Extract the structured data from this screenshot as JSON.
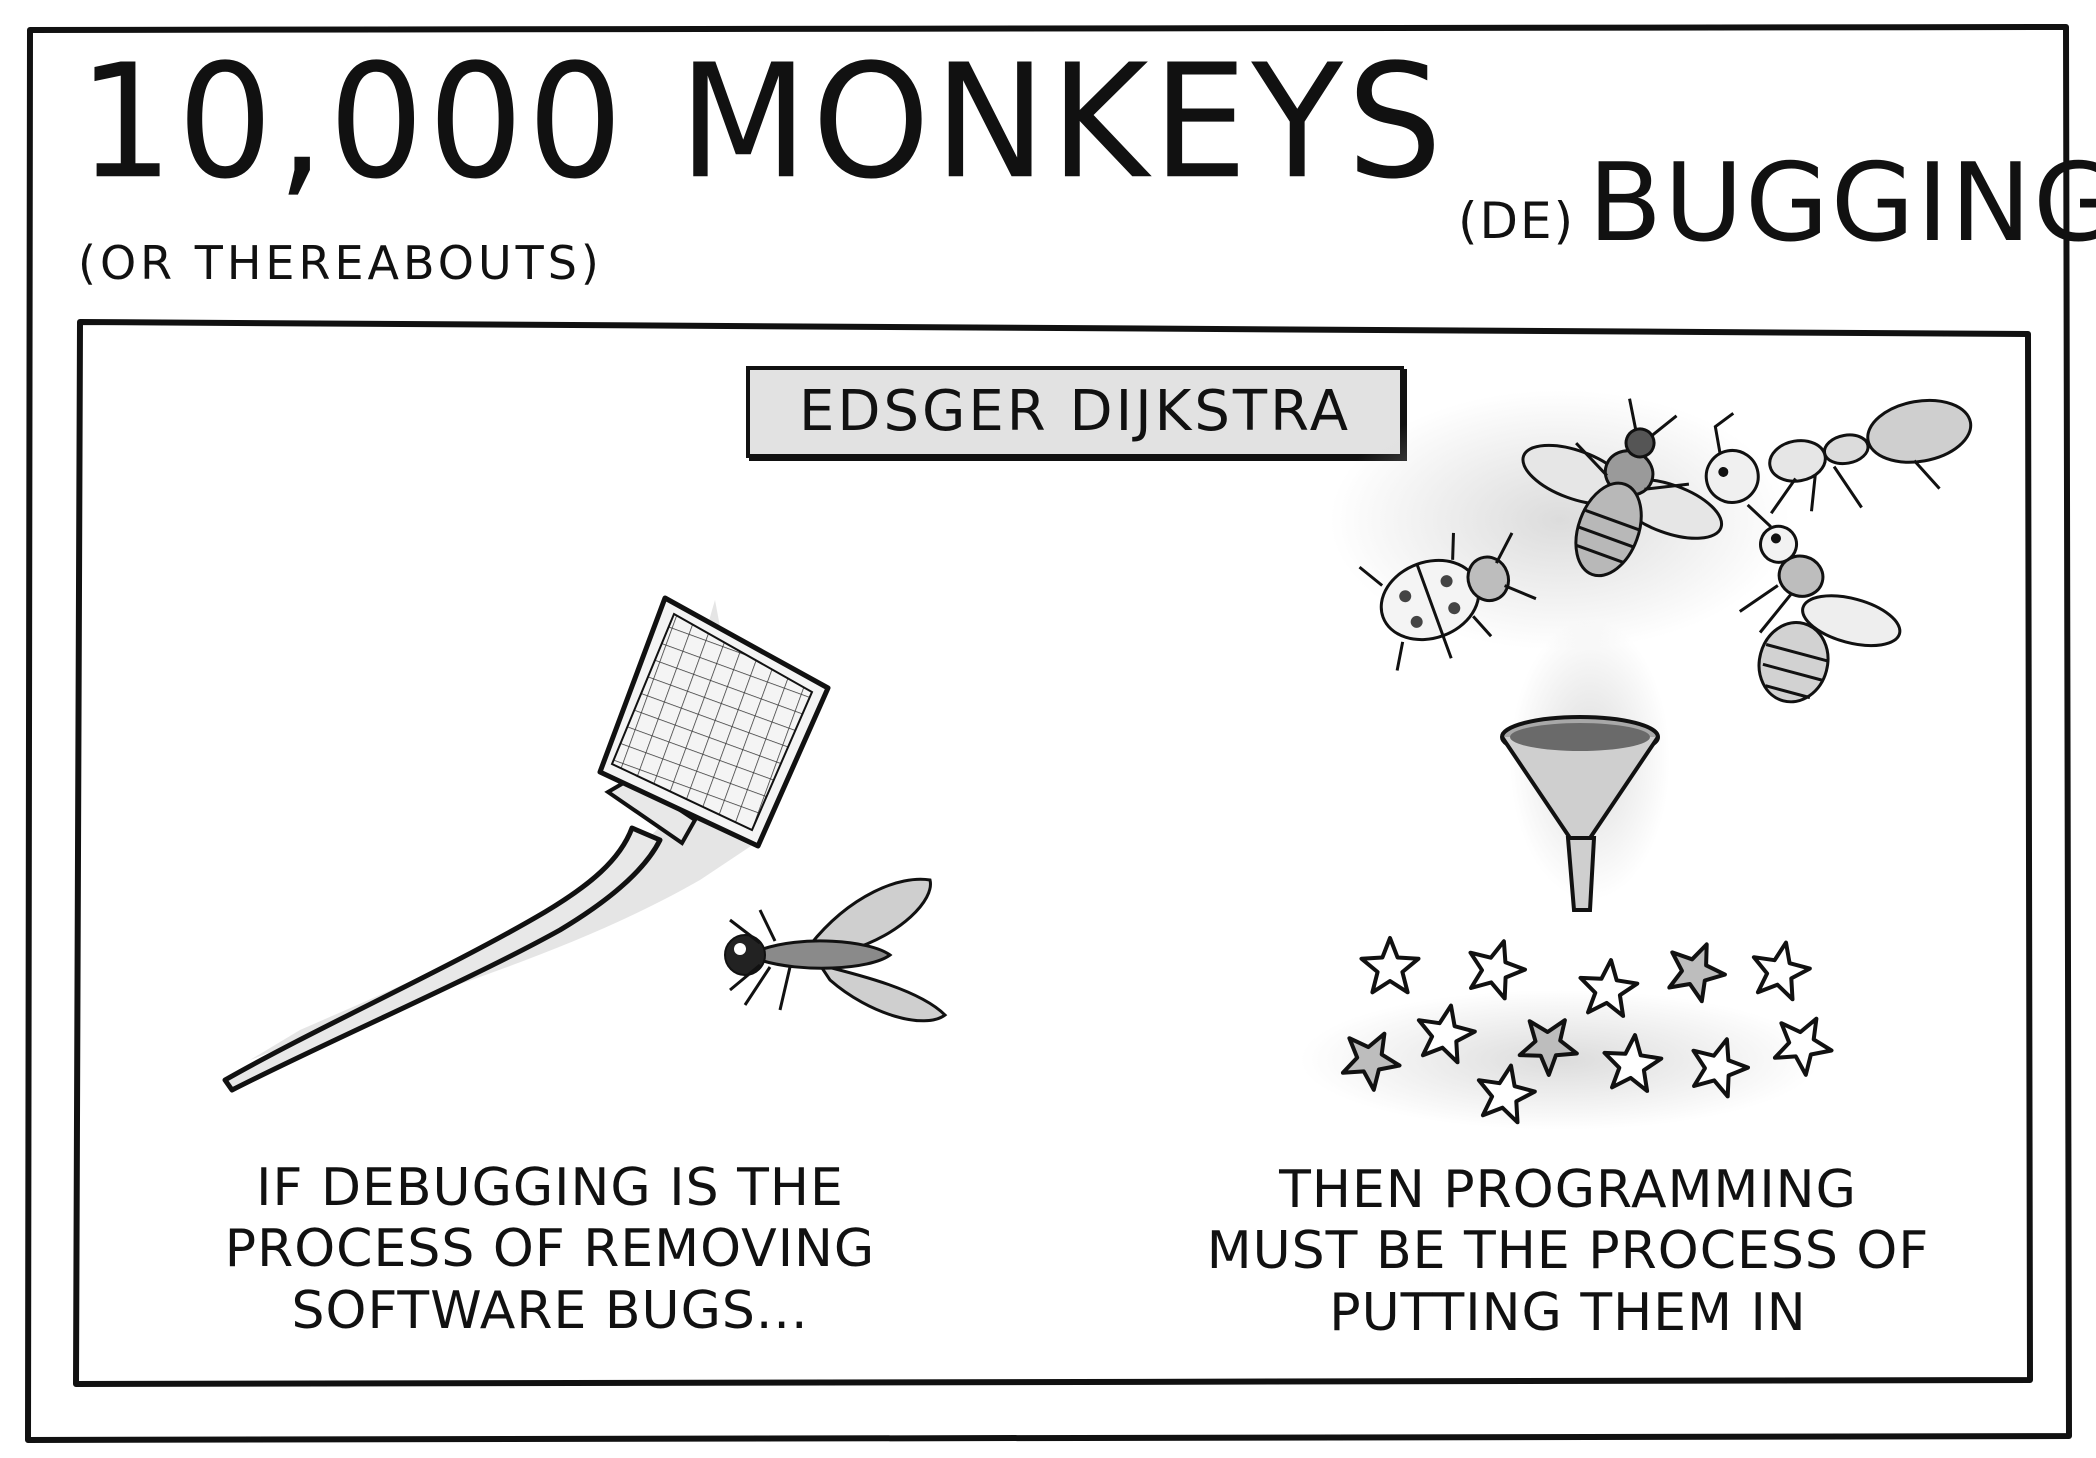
{
  "header": {
    "title": "10,000 MONKEYS",
    "subtitle": "(OR THEREABOUTS)",
    "series_prefix": "(DE)",
    "series_word": "BUGGING"
  },
  "panel": {
    "attribution": "EDSGER DIJKSTRA",
    "left_caption": [
      "IF DEBUGGING IS THE",
      "PROCESS OF REMOVING",
      "SOFTWARE BUGS..."
    ],
    "right_caption": [
      "THEN PROGRAMMING",
      "MUST BE THE PROCESS OF",
      "PUTTING THEM IN"
    ]
  },
  "illustrations": {
    "left": [
      "fly-swatter-icon",
      "fly-icon"
    ],
    "right": [
      "bee-icon",
      "ant-icon",
      "ladybug-icon",
      "wasp-icon",
      "funnel-icon",
      "star-icon"
    ]
  },
  "colors": {
    "ink": "#111111",
    "box_fill": "#e2e2e2",
    "shade": "#d6d6d6"
  }
}
